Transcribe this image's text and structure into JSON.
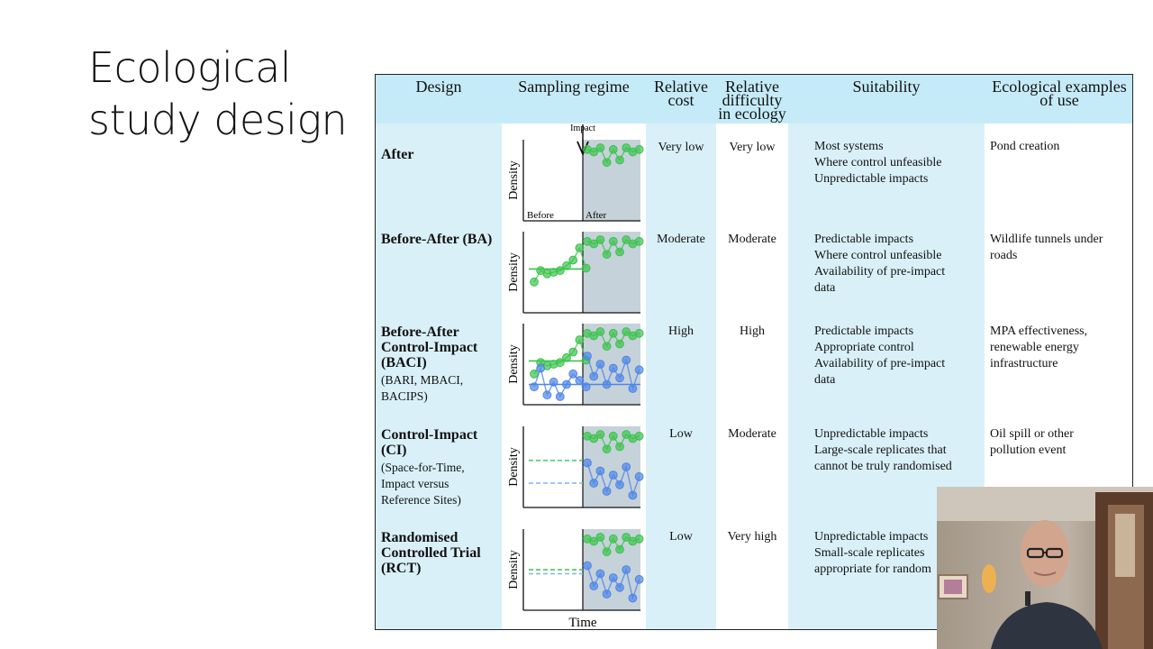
{
  "slide": {
    "title_line1": "Ecological",
    "title_line2": "study design"
  },
  "table": {
    "headers": {
      "design": "Design",
      "sampling": "Sampling regime",
      "cost": "Relative cost",
      "difficulty": "Relative difficulty in ecology",
      "suitability": "Suitability",
      "examples": "Ecological examples of use"
    },
    "rows": [
      {
        "name": "After",
        "sub": "",
        "cost": "Very low",
        "difficulty": "Very low",
        "suitability": [
          "Most systems",
          "Where control unfeasible",
          "Unpredictable impacts"
        ],
        "examples": "Pond creation"
      },
      {
        "name": "Before-After (BA)",
        "sub": "",
        "cost": "Moderate",
        "difficulty": "Moderate",
        "suitability": [
          "Predictable impacts",
          "Where control unfeasible",
          "Availability of pre-impact data"
        ],
        "examples": "Wildlife tunnels under roads"
      },
      {
        "name": "Before-After Control-Impact (BACI)",
        "sub": "(BARI, MBACI, BACIPS)",
        "cost": "High",
        "difficulty": "High",
        "suitability": [
          "Predictable impacts",
          "Appropriate control",
          "Availability of pre-impact data"
        ],
        "examples": "MPA effectiveness, renewable energy infrastructure"
      },
      {
        "name": "Control-Impact (CI)",
        "sub": "(Space-for-Time, Impact versus Reference Sites)",
        "cost": "Low",
        "difficulty": "Moderate",
        "suitability": [
          "Unpredictable impacts",
          "Large-scale replicates that cannot be truly randomised"
        ],
        "examples": "Oil spill or other pollution event"
      },
      {
        "name": "Randomised Controlled Trial (RCT)",
        "sub": "",
        "cost": "Low",
        "difficulty": "Very high",
        "suitability": [
          "Unpredictable impacts",
          "Small-scale replicates",
          "appropriate for random"
        ],
        "examples": ""
      }
    ],
    "plot_labels": {
      "density": "Density",
      "before": "Before",
      "after": "After",
      "impact": "Impact",
      "time": "Time"
    }
  },
  "colors": {
    "header_blue": "#c6ebf8",
    "column_blue": "#d9f0f8",
    "green": "#3cc34d",
    "blue": "#4f86e8",
    "after_shade": "#c6d2d9"
  },
  "webcam": {
    "icon": "presenter-webcam"
  }
}
